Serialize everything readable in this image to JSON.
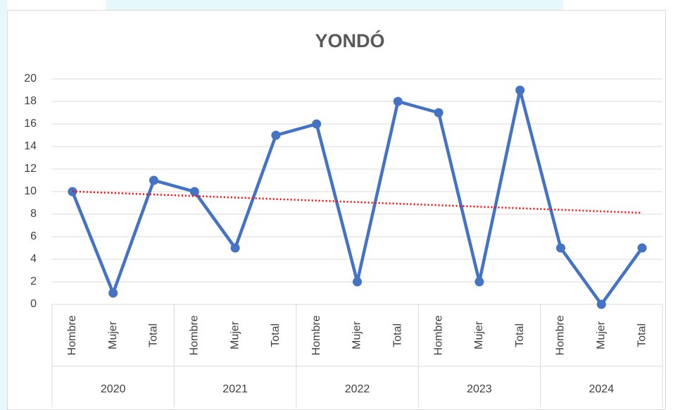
{
  "chart_data": {
    "type": "line",
    "title": "YONDÓ",
    "categories": [
      "Hombre",
      "Mujer",
      "Total",
      "Hombre",
      "Mujer",
      "Total",
      "Hombre",
      "Mujer",
      "Total",
      "Hombre",
      "Mujer",
      "Total",
      "Hombre",
      "Mujer",
      "Total"
    ],
    "category_groups": [
      "2020",
      "2021",
      "2022",
      "2023",
      "2024"
    ],
    "series": [
      {
        "color": "#4472c4",
        "values": [
          10,
          1,
          11,
          10,
          5,
          15,
          16,
          2,
          18,
          17,
          2,
          19,
          5,
          0,
          5
        ]
      }
    ],
    "trendline": {
      "type": "linear",
      "color": "#ff0000",
      "style": "dotted"
    },
    "ylim": [
      0,
      20
    ],
    "yticks": [
      0,
      2,
      4,
      6,
      8,
      10,
      12,
      14,
      16,
      18,
      20
    ],
    "grid": true
  }
}
